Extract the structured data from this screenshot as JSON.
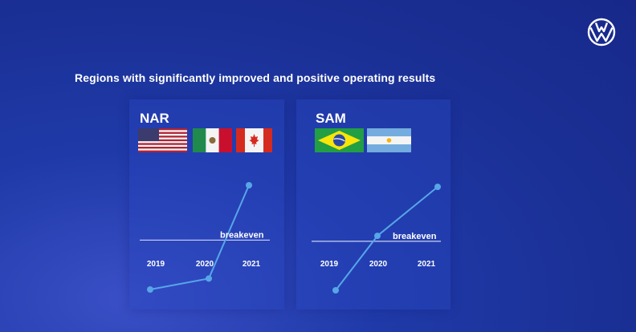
{
  "headline": "Regions with significantly improved and positive operating results",
  "logo_icon": "vw-logo-icon",
  "colors": {
    "line": "#57a6e8",
    "breakeven_line": "#c9d3f0",
    "background": "#1f3aa8"
  },
  "regions": [
    {
      "name": "NAR",
      "flags": [
        "us-flag-icon",
        "mexico-flag-icon",
        "canada-flag-icon"
      ]
    },
    {
      "name": "SAM",
      "flags": [
        "brazil-flag-icon",
        "argentina-flag-icon"
      ]
    }
  ],
  "chart_data": [
    {
      "type": "line",
      "title": "NAR",
      "x": [
        "2019",
        "2020",
        "2021"
      ],
      "series": [
        {
          "values": [
            -0.9,
            -0.7,
            1.0
          ]
        }
      ],
      "reference_line": {
        "label": "breakeven",
        "value": 0
      },
      "ylim": [
        -1,
        1.1
      ]
    },
    {
      "type": "line",
      "title": "SAM",
      "x": [
        "2019",
        "2020",
        "2021"
      ],
      "series": [
        {
          "values": [
            -0.9,
            0.1,
            1.0
          ]
        }
      ],
      "reference_line": {
        "label": "breakeven",
        "value": 0
      },
      "ylim": [
        -1,
        1.1
      ]
    }
  ]
}
